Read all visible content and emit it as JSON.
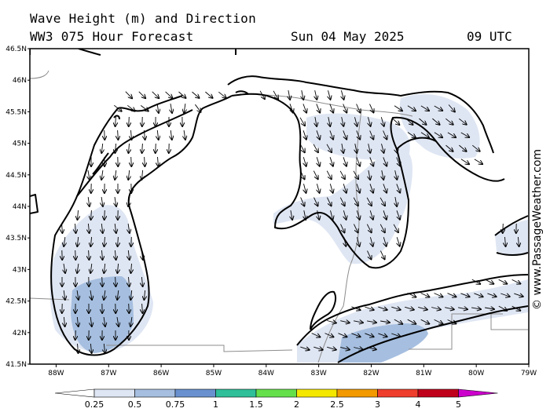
{
  "header": {
    "title_line1": "Wave Height (m) and Direction",
    "title_line2": "WW3 075 Hour Forecast",
    "date": "Sun 04 May 2025",
    "hour": "09 UTC"
  },
  "credit": "© www.PassageWeather.com",
  "map": {
    "lat_labels": [
      "46.5N",
      "46N",
      "45.5N",
      "45N",
      "44.5N",
      "44N",
      "43.5N",
      "43N",
      "42.5N",
      "42N",
      "41.5N"
    ],
    "lon_labels": [
      "88W",
      "87W",
      "86W",
      "85W",
      "84W",
      "83W",
      "82W",
      "81W",
      "80W",
      "79W"
    ],
    "lat_range": [
      41.5,
      46.5
    ],
    "lon_range": [
      -88.5,
      -79
    ],
    "colors": {
      "land": "#ffffff",
      "coast": "#000000",
      "border": "#8c8c8c",
      "wave_025_05": "#dfe6f3",
      "wave_05_075": "#a6bfe0",
      "arrow": "#000000"
    }
  },
  "colorbar": {
    "labels": [
      "0.25",
      "0.5",
      "0.75",
      "1",
      "1.5",
      "2",
      "2.5",
      "3",
      "4",
      "5"
    ],
    "colors": [
      "#ffffff",
      "#dfe6f3",
      "#a6bfe0",
      "#6a91cf",
      "#2fbf99",
      "#66e04a",
      "#f5e800",
      "#f29a00",
      "#ef3e2c",
      "#c0001a",
      "#cc00cc"
    ]
  }
}
